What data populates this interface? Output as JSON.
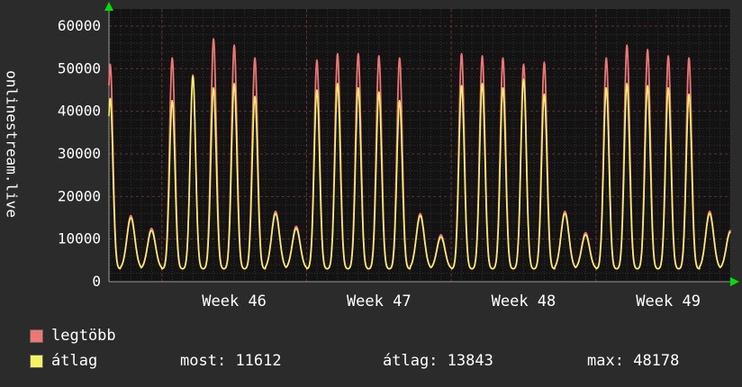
{
  "app": {
    "watermark": "onlinestream.live"
  },
  "axis": {
    "y_ticks": [
      0,
      10000,
      20000,
      30000,
      40000,
      50000,
      60000
    ],
    "x_ticks": [
      {
        "label": "Week 46",
        "day": 6.5
      },
      {
        "label": "Week 47",
        "day": 13.5
      },
      {
        "label": "Week 48",
        "day": 20.5
      },
      {
        "label": "Week 49",
        "day": 27.5
      }
    ]
  },
  "legend": [
    {
      "label": "legtöbb",
      "color": "#f07575"
    },
    {
      "label": "átlag",
      "color": "#f5f266"
    }
  ],
  "stats": [
    {
      "label": "most:",
      "value": "11612"
    },
    {
      "label": "átlag:",
      "value": "13843"
    },
    {
      "label": "max:",
      "value": "48178"
    }
  ],
  "colors": {
    "panel_bg": "#2b2b2b",
    "plot_bg": "#131313",
    "grid_minor": "#3a2d2d",
    "grid_major": "#9c4747",
    "axis_line": "#9a9a9a",
    "arrow": "#00e000",
    "text": "#ffffff"
  },
  "chart_data": {
    "type": "line",
    "ylabel": "onlinestream.live",
    "ylim": [
      0,
      64000
    ],
    "y_ticks": [
      0,
      10000,
      20000,
      30000,
      40000,
      50000,
      60000
    ],
    "x_tick_labels": [
      "Week 46",
      "Week 47",
      "Week 48",
      "Week 49"
    ],
    "x_ticks_day": [
      6.5,
      13.5,
      20.5,
      27.5
    ],
    "week_start_days": [
      3,
      10,
      17,
      24
    ],
    "days": 31,
    "time_start_day": 0.44,
    "time_end_day": 30.5,
    "baseline_value": 3000,
    "legend_position": "bottom-left",
    "grid": true,
    "series": [
      {
        "name": "legtöbb",
        "role": "daily_max",
        "color": "#f07575",
        "daily_peaks": [
          51000,
          15500,
          12500,
          52500,
          48500,
          57000,
          55500,
          52500,
          16500,
          13000,
          52000,
          53500,
          53500,
          53000,
          52500,
          16000,
          11000,
          53500,
          53000,
          52500,
          51000,
          51500,
          16500,
          11500,
          52500,
          55500,
          54500,
          53000,
          52500,
          16500,
          12000
        ]
      },
      {
        "name": "átlag",
        "role": "daily_avg",
        "color": "#f5f266",
        "daily_peaks": [
          43000,
          15000,
          12000,
          42500,
          48178,
          45500,
          46500,
          43500,
          16000,
          12500,
          45000,
          46500,
          45500,
          44500,
          42500,
          15500,
          10500,
          46000,
          46500,
          45500,
          47500,
          44000,
          16000,
          11000,
          45500,
          46500,
          46000,
          45500,
          44000,
          16000,
          11612
        ]
      }
    ],
    "summary": {
      "most": 11612,
      "atlag": 13843,
      "max": 48178
    }
  }
}
